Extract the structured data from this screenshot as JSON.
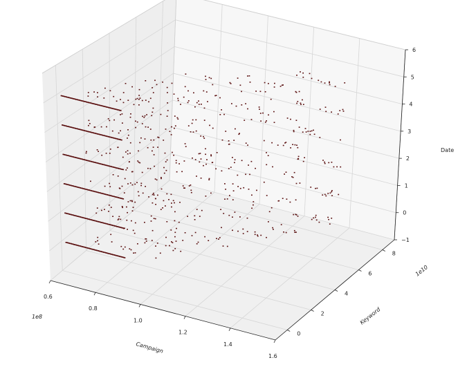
{
  "chart_data": {
    "type": "scatter",
    "title": "",
    "axes": {
      "x": {
        "label": "Campaign",
        "multiplier": "1e8",
        "range": [
          0.6,
          1.6
        ],
        "ticks": [
          "0.6",
          "0.8",
          "1.0",
          "1.2",
          "1.4",
          "1.6"
        ]
      },
      "y": {
        "label": "Keyword",
        "multiplier": "1e10",
        "range": [
          -1,
          9
        ],
        "ticks": [
          "0",
          "2",
          "4",
          "6",
          "8"
        ]
      },
      "z": {
        "label": "Date",
        "range": [
          -1,
          6
        ],
        "ticks": [
          "−1",
          "0",
          "1",
          "2",
          "3",
          "4",
          "5",
          "6"
        ]
      }
    },
    "grid": true,
    "legend": "none",
    "marker_color": "#5a0f0f",
    "levels": [
      0,
      1,
      2,
      3,
      4,
      5
    ],
    "series": [
      {
        "campaign_range": [
          0.62,
          0.88
        ],
        "keyword": 0.0,
        "dense": true
      },
      {
        "campaign_range": [
          0.68,
          1.0
        ],
        "keyword": 0.8,
        "dense": false
      },
      {
        "campaign_range": [
          0.72,
          1.05
        ],
        "keyword": 1.6,
        "dense": false
      },
      {
        "campaign_range": [
          0.75,
          1.12
        ],
        "keyword": 2.4,
        "dense": false
      },
      {
        "campaign_range": [
          0.8,
          1.18
        ],
        "keyword": 3.2,
        "dense": false
      },
      {
        "campaign_range": [
          0.9,
          1.3
        ],
        "keyword": 4.5,
        "dense": false
      },
      {
        "campaign_range": [
          1.05,
          1.35
        ],
        "keyword": 5.5,
        "dense": false
      },
      {
        "campaign_range": [
          1.25,
          1.45
        ],
        "keyword": 7.0,
        "dense": false
      }
    ]
  }
}
